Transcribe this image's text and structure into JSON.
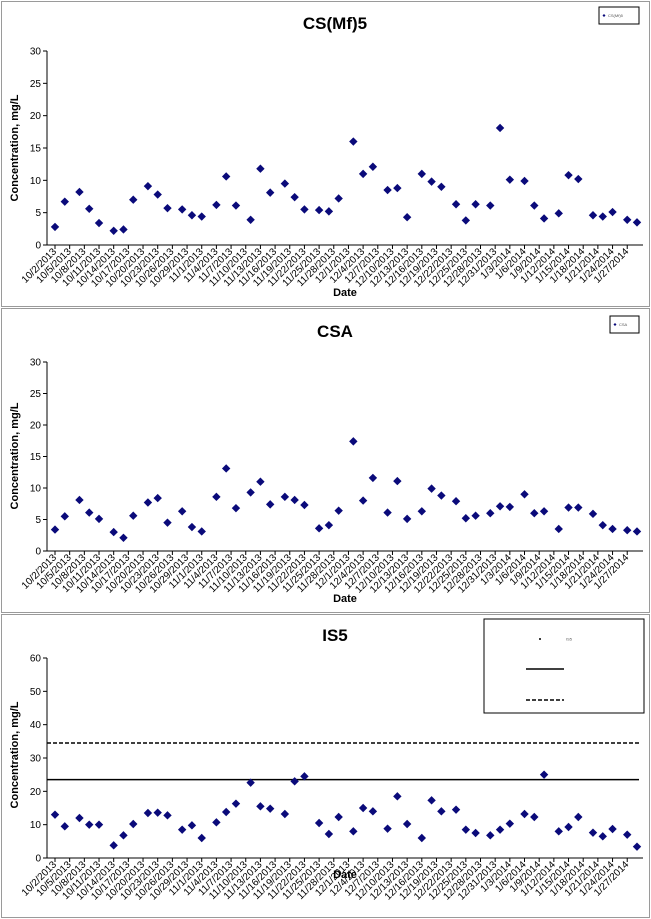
{
  "chart_data": [
    {
      "type": "scatter",
      "title": "CS(Mf)5",
      "xlabel": "Date",
      "ylabel": "Concentration, mg/L",
      "ylim": [
        0,
        30
      ],
      "yticks": [
        0,
        5,
        10,
        15,
        20,
        25,
        30
      ],
      "grid": false,
      "legend": {
        "position": "top-right",
        "entries": [
          {
            "name": "CS(Mf)5",
            "kind": "marker"
          }
        ]
      },
      "x_tick_labels": [
        "10/2/2013",
        "10/5/2013",
        "10/8/2013",
        "10/11/2013",
        "10/14/2013",
        "10/17/2013",
        "10/20/2013",
        "10/23/2013",
        "10/26/2013",
        "10/29/2013",
        "11/1/2013",
        "11/4/2013",
        "11/7/2013",
        "11/10/2013",
        "11/13/2013",
        "11/16/2013",
        "11/19/2013",
        "11/22/2013",
        "11/25/2013",
        "11/28/2013",
        "12/1/2013",
        "12/4/2013",
        "12/7/2013",
        "12/10/2013",
        "12/13/2013",
        "12/16/2013",
        "12/19/2013",
        "12/22/2013",
        "12/25/2013",
        "12/28/2013",
        "12/31/2013",
        "1/3/2014",
        "1/6/2014",
        "1/9/2014",
        "1/12/2014",
        "1/15/2014",
        "1/18/2014",
        "1/21/2014",
        "1/24/2014",
        "1/27/2014"
      ],
      "series": [
        {
          "color": "#0a0a7a",
          "marker": "diamond",
          "x": [
            "10/2/2013",
            "10/4/2013",
            "10/7/2013",
            "10/9/2013",
            "10/11/2013",
            "10/14/2013",
            "10/16/2013",
            "10/18/2013",
            "10/21/2013",
            "10/23/2013",
            "10/25/2013",
            "10/28/2013",
            "10/30/2013",
            "11/1/2013",
            "11/4/2013",
            "11/6/2013",
            "11/8/2013",
            "11/11/2013",
            "11/13/2013",
            "11/15/2013",
            "11/18/2013",
            "11/20/2013",
            "11/22/2013",
            "11/25/2013",
            "11/27/2013",
            "11/29/2013",
            "12/2/2013",
            "12/4/2013",
            "12/6/2013",
            "12/9/2013",
            "12/11/2013",
            "12/13/2013",
            "12/16/2013",
            "12/18/2013",
            "12/20/2013",
            "12/23/2013",
            "12/25/2013",
            "12/27/2013",
            "12/30/2013",
            "1/1/2014",
            "1/3/2014",
            "1/6/2014",
            "1/8/2014",
            "1/10/2014",
            "1/13/2014",
            "1/15/2014",
            "1/17/2014",
            "1/20/2014",
            "1/22/2014",
            "1/24/2014",
            "1/27/2014",
            "1/29/2014"
          ],
          "y": [
            2.8,
            6.7,
            8.2,
            5.6,
            3.4,
            2.2,
            2.4,
            7.0,
            9.1,
            7.8,
            5.7,
            5.5,
            4.6,
            4.4,
            6.2,
            10.6,
            6.1,
            3.9,
            11.8,
            8.1,
            9.5,
            7.4,
            5.5,
            5.4,
            5.2,
            7.2,
            16.0,
            11.0,
            12.1,
            8.5,
            8.8,
            4.3,
            11.0,
            9.8,
            9.0,
            6.3,
            3.8,
            6.3,
            6.1,
            18.1,
            10.1,
            9.9,
            6.1,
            4.1,
            4.9,
            10.8,
            10.2,
            4.6,
            4.4,
            5.1,
            3.9,
            3.5
          ]
        }
      ]
    },
    {
      "type": "scatter",
      "title": "CSA",
      "xlabel": "Date",
      "ylabel": "Concentration, mg/L",
      "ylim": [
        0,
        30
      ],
      "yticks": [
        0,
        5,
        10,
        15,
        20,
        25,
        30
      ],
      "grid": false,
      "legend": {
        "position": "top-right",
        "entries": [
          {
            "name": "CSA",
            "kind": "marker"
          }
        ]
      },
      "x_tick_labels": [
        "10/2/2013",
        "10/5/2013",
        "10/8/2013",
        "10/11/2013",
        "10/14/2013",
        "10/17/2013",
        "10/20/2013",
        "10/23/2013",
        "10/26/2013",
        "10/29/2013",
        "11/1/2013",
        "11/4/2013",
        "11/7/2013",
        "11/10/2013",
        "11/13/2013",
        "11/16/2013",
        "11/19/2013",
        "11/22/2013",
        "11/25/2013",
        "11/28/2013",
        "12/1/2013",
        "12/4/2013",
        "12/7/2013",
        "12/10/2013",
        "12/13/2013",
        "12/16/2013",
        "12/19/2013",
        "12/22/2013",
        "12/25/2013",
        "12/28/2013",
        "12/31/2013",
        "1/3/2014",
        "1/6/2014",
        "1/9/2014",
        "1/12/2014",
        "1/15/2014",
        "1/18/2014",
        "1/21/2014",
        "1/24/2014",
        "1/27/2014"
      ],
      "series": [
        {
          "color": "#0a0a7a",
          "marker": "diamond",
          "x": [
            "10/2/2013",
            "10/4/2013",
            "10/7/2013",
            "10/9/2013",
            "10/11/2013",
            "10/14/2013",
            "10/16/2013",
            "10/18/2013",
            "10/21/2013",
            "10/23/2013",
            "10/25/2013",
            "10/28/2013",
            "10/30/2013",
            "11/1/2013",
            "11/4/2013",
            "11/6/2013",
            "11/8/2013",
            "11/11/2013",
            "11/13/2013",
            "11/15/2013",
            "11/18/2013",
            "11/20/2013",
            "11/22/2013",
            "11/25/2013",
            "11/27/2013",
            "11/29/2013",
            "12/2/2013",
            "12/4/2013",
            "12/6/2013",
            "12/9/2013",
            "12/11/2013",
            "12/13/2013",
            "12/16/2013",
            "12/18/2013",
            "12/20/2013",
            "12/23/2013",
            "12/25/2013",
            "12/27/2013",
            "12/30/2013",
            "1/1/2014",
            "1/3/2014",
            "1/6/2014",
            "1/8/2014",
            "1/10/2014",
            "1/13/2014",
            "1/15/2014",
            "1/17/2014",
            "1/20/2014",
            "1/22/2014",
            "1/24/2014",
            "1/27/2014",
            "1/29/2014"
          ],
          "y": [
            3.4,
            5.5,
            8.1,
            6.1,
            5.1,
            3.0,
            2.1,
            5.6,
            7.7,
            8.4,
            4.5,
            6.3,
            3.8,
            3.1,
            8.6,
            13.1,
            6.8,
            9.3,
            11.0,
            7.4,
            8.6,
            8.1,
            7.3,
            3.6,
            4.1,
            6.4,
            17.4,
            8.0,
            11.6,
            6.1,
            11.1,
            5.1,
            6.3,
            9.9,
            8.8,
            7.9,
            5.2,
            5.6,
            6.0,
            7.1,
            7.0,
            9.0,
            6.0,
            6.3,
            3.5,
            6.9,
            6.9,
            5.9,
            4.1,
            3.5,
            3.3,
            3.1
          ]
        }
      ]
    },
    {
      "type": "scatter",
      "title": "IS5",
      "xlabel": "Date",
      "ylabel": "Concentration, mg/L",
      "ylim": [
        0,
        60
      ],
      "yticks": [
        0,
        10,
        20,
        30,
        40,
        50,
        60
      ],
      "grid": false,
      "legend": {
        "position": "top-right",
        "entries": [
          {
            "name": "IS5",
            "kind": "marker"
          },
          {
            "name": "",
            "kind": "solid-line"
          },
          {
            "name": "",
            "kind": "dashed-line"
          }
        ]
      },
      "reference_lines": [
        {
          "y": 23.5,
          "style": "solid"
        },
        {
          "y": 34.5,
          "style": "dashed"
        }
      ],
      "x_tick_labels": [
        "10/2/2013",
        "10/5/2013",
        "10/8/2013",
        "10/11/2013",
        "10/14/2013",
        "10/17/2013",
        "10/20/2013",
        "10/23/2013",
        "10/26/2013",
        "10/29/2013",
        "11/1/2013",
        "11/4/2013",
        "11/7/2013",
        "11/10/2013",
        "11/13/2013",
        "11/16/2013",
        "11/19/2013",
        "11/22/2013",
        "11/25/2013",
        "11/28/2013",
        "12/1/2013",
        "12/4/2013",
        "12/7/2013",
        "12/10/2013",
        "12/13/2013",
        "12/16/2013",
        "12/19/2013",
        "12/22/2013",
        "12/25/2013",
        "12/28/2013",
        "12/31/2013",
        "1/3/2014",
        "1/6/2014",
        "1/9/2014",
        "1/12/2014",
        "1/15/2014",
        "1/18/2014",
        "1/21/2014",
        "1/24/2014",
        "1/27/2014"
      ],
      "series": [
        {
          "color": "#0a0a7a",
          "marker": "diamond",
          "x": [
            "10/2/2013",
            "10/4/2013",
            "10/7/2013",
            "10/9/2013",
            "10/11/2013",
            "10/14/2013",
            "10/16/2013",
            "10/18/2013",
            "10/21/2013",
            "10/23/2013",
            "10/25/2013",
            "10/28/2013",
            "10/30/2013",
            "11/1/2013",
            "11/4/2013",
            "11/6/2013",
            "11/8/2013",
            "11/11/2013",
            "11/13/2013",
            "11/15/2013",
            "11/18/2013",
            "11/20/2013",
            "11/22/2013",
            "11/25/2013",
            "11/27/2013",
            "11/29/2013",
            "12/2/2013",
            "12/4/2013",
            "12/6/2013",
            "12/9/2013",
            "12/11/2013",
            "12/13/2013",
            "12/16/2013",
            "12/18/2013",
            "12/20/2013",
            "12/23/2013",
            "12/25/2013",
            "12/27/2013",
            "12/30/2013",
            "1/1/2014",
            "1/3/2014",
            "1/6/2014",
            "1/8/2014",
            "1/10/2014",
            "1/13/2014",
            "1/15/2014",
            "1/17/2014",
            "1/20/2014",
            "1/22/2014",
            "1/24/2014",
            "1/27/2014",
            "1/29/2014"
          ],
          "y": [
            13.0,
            9.5,
            12.0,
            10.0,
            10.0,
            3.8,
            6.8,
            10.2,
            13.5,
            13.6,
            12.8,
            8.5,
            9.8,
            6.0,
            10.7,
            13.8,
            16.3,
            22.6,
            15.5,
            14.8,
            13.2,
            23.0,
            24.5,
            10.5,
            7.2,
            12.3,
            8.0,
            15.0,
            14.0,
            8.8,
            18.5,
            10.2,
            6.0,
            17.3,
            14.0,
            14.5,
            8.5,
            7.5,
            6.8,
            8.5,
            10.3,
            13.2,
            12.3,
            25.0,
            8.0,
            9.3,
            12.3,
            7.6,
            6.5,
            8.7,
            7.0,
            3.4
          ]
        }
      ]
    }
  ]
}
